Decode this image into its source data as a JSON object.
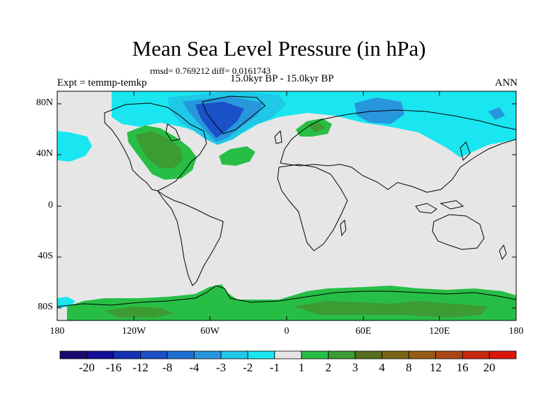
{
  "title": "Mean Sea Level Pressure (in hPa)",
  "stats": "rmsd= 0.769212 diff= 0.0161743",
  "experiment": "Expt = temmp-temkp",
  "period": "15.0kyr BP - 15.0kyr BP",
  "season": "ANN",
  "lat_ticks": [
    "80N",
    "40N",
    "0",
    "40S",
    "80S"
  ],
  "lon_ticks": [
    "180",
    "120W",
    "60W",
    "0",
    "60E",
    "120E",
    "180"
  ],
  "colorbar": {
    "labels": [
      "-20",
      "-16",
      "-12",
      "-8",
      "-4",
      "-3",
      "-2",
      "-1",
      "1",
      "2",
      "3",
      "4",
      "8",
      "12",
      "16",
      "20"
    ],
    "colors": [
      "#1a0a6e",
      "#120d99",
      "#1432b4",
      "#1a50c8",
      "#1e6fd2",
      "#2896dc",
      "#1ec8e6",
      "#19e6f0",
      "#e6e6e6",
      "#28be46",
      "#3c9b32",
      "#556e1e",
      "#786414",
      "#965a14",
      "#aa4614",
      "#c8280f",
      "#dc140a"
    ]
  },
  "colors": {
    "ocean_land": "#e6e6e6",
    "cyan": "#19e6f0",
    "lightblue": "#1ec8e6",
    "midblue": "#2896dc",
    "darkblue": "#1a50c8",
    "green": "#28be46",
    "darkgreen": "#3c9b32",
    "olive": "#556e1e"
  }
}
